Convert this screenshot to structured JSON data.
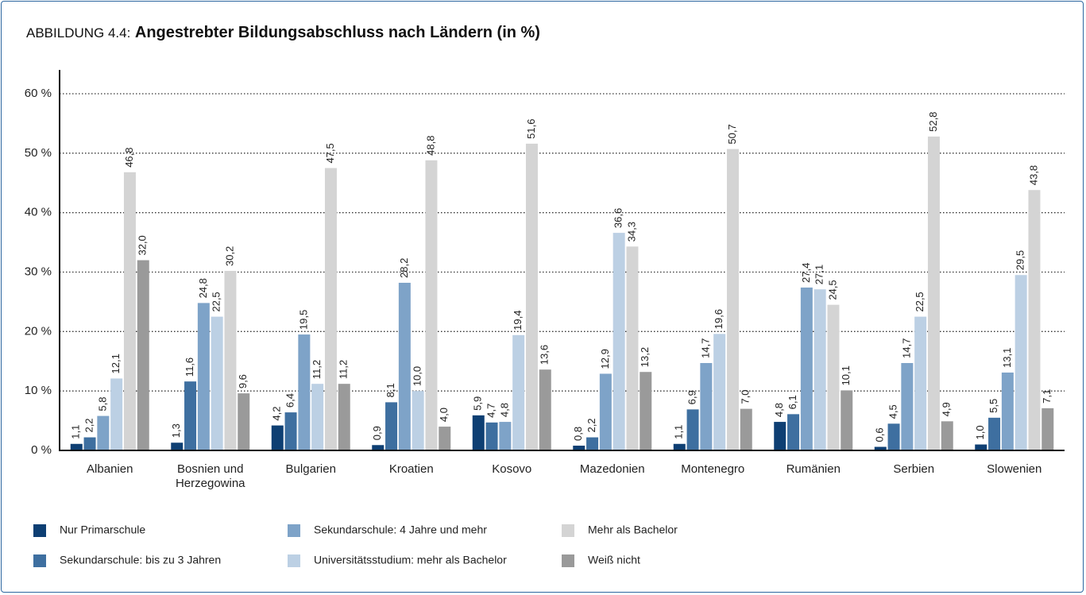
{
  "chart_data": {
    "type": "bar",
    "label": "ABBILDUNG 4.4:",
    "title": "Angestrebter Bildungsabschluss nach Ländern (in %)",
    "categories": [
      "Albanien",
      "Bosnien und Herzegowina",
      "Bulgarien",
      "Kroatien",
      "Kosovo",
      "Mazedonien",
      "Montenegro",
      "Rumänien",
      "Serbien",
      "Slowenien"
    ],
    "series": [
      {
        "name": "Nur Primarschule",
        "color": "#0e3f73",
        "values": [
          1.1,
          1.3,
          4.2,
          0.9,
          5.9,
          0.8,
          1.1,
          4.8,
          0.6,
          1.0
        ],
        "value_labels": [
          "1,1",
          "1,3",
          "4,2",
          "0,9",
          "5,9",
          "0,8",
          "1,1",
          "4,8",
          "0,6",
          "1,0"
        ]
      },
      {
        "name": "Sekundarschule: bis zu 3 Jahren",
        "color": "#3e6fa0",
        "values": [
          2.2,
          11.6,
          6.4,
          8.1,
          4.7,
          2.2,
          6.9,
          6.1,
          4.5,
          5.5
        ],
        "value_labels": [
          "2,2",
          "11,6",
          "6,4",
          "8,1",
          "4,7",
          "2,2",
          "6,9",
          "6,1",
          "4,5",
          "5,5"
        ]
      },
      {
        "name": "Sekundarschule: 4 Jahre und mehr",
        "color": "#7ea3c8",
        "values": [
          5.8,
          24.8,
          19.5,
          28.2,
          4.8,
          12.9,
          14.7,
          27.4,
          14.7,
          13.1
        ],
        "value_labels": [
          "5,8",
          "24,8",
          "19,5",
          "28,2",
          "4,8",
          "12,9",
          "14,7",
          "27,4",
          "14,7",
          "13,1"
        ]
      },
      {
        "name": "Universitätsstudium: mehr als Bachelor",
        "color": "#bcd0e4",
        "values": [
          12.1,
          22.5,
          11.2,
          10.0,
          19.4,
          36.6,
          19.6,
          27.1,
          22.5,
          29.5
        ],
        "value_labels": [
          "12,1",
          "22,5",
          "11,2",
          "10,0",
          "19,4",
          "36,6",
          "19,6",
          "27,1",
          "22,5",
          "29,5"
        ]
      },
      {
        "name": "Mehr als Bachelor",
        "color": "#d4d4d4",
        "values": [
          46.8,
          30.2,
          47.5,
          48.8,
          51.6,
          34.3,
          50.7,
          24.5,
          52.8,
          43.8
        ],
        "value_labels": [
          "46,8",
          "30,2",
          "47,5",
          "48,8",
          "51,6",
          "34,3",
          "50,7",
          "24,5",
          "52,8",
          "43,8"
        ]
      },
      {
        "name": "Weiß nicht",
        "color": "#9a9a9a",
        "values": [
          32.0,
          9.6,
          11.2,
          4.0,
          13.6,
          13.2,
          7.0,
          10.1,
          4.9,
          7.1
        ],
        "value_labels": [
          "32,0",
          "9,6",
          "11,2",
          "4,0",
          "13,6",
          "13,2",
          "7,0",
          "10,1",
          "4,9",
          "7,1"
        ]
      }
    ],
    "ylim": [
      0,
      60
    ],
    "yticks": [
      {
        "value": 0,
        "label": "0 %"
      },
      {
        "value": 10,
        "label": "10 %"
      },
      {
        "value": 20,
        "label": "20 %"
      },
      {
        "value": 30,
        "label": "30 %"
      },
      {
        "value": 40,
        "label": "40 %"
      },
      {
        "value": 50,
        "label": "50 %"
      },
      {
        "value": 60,
        "label": "60 %"
      }
    ],
    "grid": true
  }
}
